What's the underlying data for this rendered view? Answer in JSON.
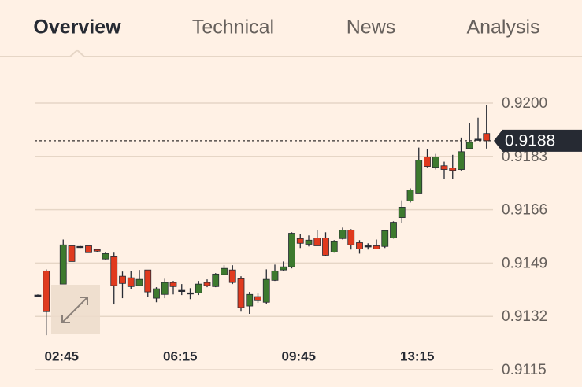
{
  "tabs": [
    "Overview",
    "Technical",
    "News",
    "Analysis"
  ],
  "chart_data": {
    "type": "candlestick",
    "categories": [
      null,
      null,
      null,
      "02:45",
      null,
      null,
      null,
      null,
      null,
      null,
      null,
      null,
      null,
      null,
      null,
      null,
      null,
      "06:15",
      null,
      null,
      null,
      null,
      null,
      null,
      null,
      null,
      null,
      null,
      null,
      null,
      null,
      "09:45",
      null,
      null,
      null,
      null,
      null,
      null,
      null,
      null,
      null,
      null,
      null,
      null,
      null,
      "13:15",
      null,
      null,
      null,
      null,
      null,
      null,
      null,
      null
    ],
    "open": [
      0.91388,
      0.91465,
      null,
      0.91423,
      0.91545,
      0.91543,
      0.91545,
      0.91533,
      0.91503,
      0.9151,
      0.91448,
      0.91443,
      0.91418,
      0.91468,
      0.91378,
      0.9139,
      0.91428,
      0.91403,
      0.91395,
      0.91395,
      0.91428,
      0.91415,
      0.91453,
      0.91468,
      0.9144,
      0.91353,
      0.91383,
      0.91365,
      0.91435,
      0.91468,
      0.91478,
      0.91568,
      0.9155,
      0.9157,
      0.9157,
      0.91525,
      0.91568,
      0.91595,
      0.91555,
      0.91545,
      0.91545,
      0.91543,
      0.9157,
      0.91635,
      0.91688,
      0.91713,
      0.91828,
      0.91795,
      0.918,
      0.91793,
      0.91788,
      0.91855,
      0.91885,
      0.91903
    ],
    "high": [
      0.9139,
      0.9147,
      null,
      0.91565,
      0.91545,
      0.91545,
      0.91545,
      0.91535,
      0.91525,
      0.91523,
      0.91463,
      0.91465,
      0.91468,
      0.91468,
      0.91413,
      0.9144,
      0.91433,
      0.91423,
      0.9141,
      0.91433,
      0.91438,
      0.91458,
      0.91483,
      0.91483,
      0.91448,
      0.91398,
      0.91393,
      0.9147,
      0.91485,
      0.91495,
      0.91588,
      0.91583,
      0.91578,
      0.91595,
      0.91588,
      0.91563,
      0.91603,
      0.91598,
      0.91563,
      0.91553,
      0.91565,
      0.91593,
      0.91623,
      0.9169,
      0.91728,
      0.91858,
      0.91853,
      0.91838,
      0.91813,
      0.91835,
      0.9189,
      0.91935,
      0.91953,
      0.91995
    ],
    "low": [
      0.91385,
      0.9126,
      null,
      0.91423,
      0.91495,
      0.91538,
      0.91523,
      0.91525,
      0.915,
      0.91358,
      0.91378,
      0.91408,
      0.91418,
      0.91383,
      0.91365,
      0.91378,
      0.9139,
      0.91388,
      0.91375,
      0.91388,
      0.91413,
      0.91413,
      0.91453,
      0.91423,
      0.91335,
      0.91328,
      0.91363,
      0.9136,
      0.91433,
      0.91465,
      0.91473,
      0.91538,
      0.91543,
      0.91545,
      0.91513,
      0.91523,
      0.91565,
      0.91533,
      0.9152,
      0.91533,
      0.91535,
      0.91538,
      0.91568,
      0.91618,
      0.91683,
      0.91713,
      0.91795,
      0.91788,
      0.91758,
      0.91758,
      0.91785,
      0.91853,
      0.9188,
      0.91855
    ],
    "close": [
      0.91388,
      0.91335,
      null,
      0.91548,
      0.91495,
      0.91543,
      0.91523,
      0.91528,
      0.9152,
      0.91418,
      0.91425,
      0.91415,
      0.91438,
      0.91398,
      0.91408,
      0.91428,
      0.91415,
      0.91403,
      0.91395,
      0.91423,
      0.91418,
      0.91455,
      0.91473,
      0.91428,
      0.91348,
      0.9139,
      0.9137,
      0.91438,
      0.91465,
      0.91478,
      0.91585,
      0.91553,
      0.91563,
      0.91545,
      0.91515,
      0.91558,
      0.91595,
      0.91548,
      0.91535,
      0.91545,
      0.91535,
      0.91593,
      0.9162,
      0.91668,
      0.91723,
      0.91818,
      0.91798,
      0.91828,
      0.91788,
      0.91785,
      0.91845,
      0.91875,
      0.91885,
      0.9188
    ],
    "up_color": "#3d7a2e",
    "down_color": "#e03a1e",
    "ylim": [
      0.9115,
      0.92
    ],
    "yticks": [
      {
        "value": 0.92,
        "label": "0.9200"
      },
      0.9183,
      0.9166,
      0.9149,
      0.9132,
      0.9115
    ],
    "last_price": 0.9188,
    "grid": true
  }
}
